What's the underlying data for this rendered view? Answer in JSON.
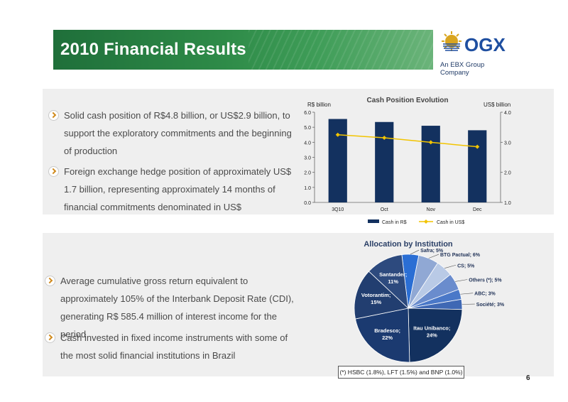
{
  "title": "2010 Financial Results",
  "logo": {
    "name": "OGX",
    "tagline": "An EBX Group Company",
    "colors": {
      "sun": "#d9a520",
      "stripes": "#1f4fa0",
      "text": "#1f3a66"
    }
  },
  "top_bullets": [
    "Solid cash position of R$4.8 billion, or US$2.9 billion, to support the exploratory commitments and the beginning of production",
    "Foreign exchange hedge position of approximately US$ 1.7 billion, representing approximately 14 months of financial commitments denominated in US$"
  ],
  "bottom_bullets": [
    "Average cumulative gross return equivalent to approximately 105% of the Interbank Deposit Rate (CDI), generating R$ 585.4 million of interest income for the period",
    "Cash invested in fixed income instruments with some of the most solid financial institutions in Brazil"
  ],
  "page_number": "6",
  "chart_data": [
    {
      "type": "bar",
      "title": "Cash Position Evolution",
      "ylabel": "R$ billion",
      "y2label": "US$ billion",
      "categories": [
        "3Q10",
        "Oct",
        "Nov",
        "Dec"
      ],
      "ylim": [
        0,
        6
      ],
      "yticks": [
        "0.0",
        "1.0",
        "2.0",
        "3.0",
        "4.0",
        "5.0",
        "6.0"
      ],
      "y2lim": [
        1,
        4
      ],
      "y2ticks": [
        "1.0",
        "2.0",
        "3.0",
        "4.0"
      ],
      "series": [
        {
          "name": "Cash in R$",
          "kind": "bar",
          "axis": "left",
          "color": "#13315f",
          "values": [
            5.55,
            5.35,
            5.1,
            4.8
          ]
        },
        {
          "name": "Cash in US$",
          "kind": "line",
          "axis": "right",
          "color": "#f2c400",
          "values": [
            3.25,
            3.15,
            3.0,
            2.85
          ]
        }
      ],
      "legend_position": "bottom"
    },
    {
      "type": "pie",
      "title": "Allocation by Institution",
      "slices": [
        {
          "label": "Safra; 5%",
          "value": 5,
          "color": "#2a6ed4"
        },
        {
          "label": "BTG Pactual; 6%",
          "value": 6,
          "color": "#90a8d4"
        },
        {
          "label": "CS; 5%",
          "value": 5,
          "color": "#b9cae6"
        },
        {
          "label": "Others (*); 5%",
          "value": 5,
          "color": "#6a8ccd"
        },
        {
          "label": "ABC; 3%",
          "value": 3,
          "color": "#4a78c8"
        },
        {
          "label": "Société; 3%",
          "value": 3,
          "color": "#3f68b4"
        },
        {
          "label": "Itau Unibanco; 24%",
          "value": 24,
          "color": "#13315f"
        },
        {
          "label": "Bradesco; 22%",
          "value": 22,
          "color": "#1b3a70"
        },
        {
          "label": "Votorantim; 15%",
          "value": 15,
          "color": "#223e70"
        },
        {
          "label": "Santander; 11%",
          "value": 11,
          "color": "#2d4a7e"
        }
      ],
      "note": "(*) HSBC (1.8%), LFT (1.5%) and BNP (1.0%)"
    }
  ]
}
